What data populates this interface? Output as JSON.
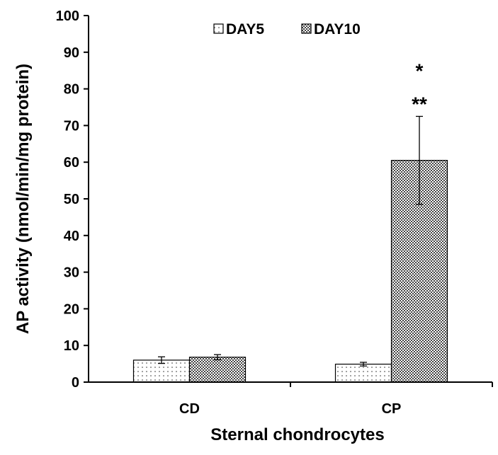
{
  "chart_data": {
    "type": "bar",
    "xlabel": "Sternal chondrocytes",
    "ylabel": "AP activity (nmol/min/mg protein)",
    "ylim": [
      0,
      100
    ],
    "yticks": [
      "0",
      "10",
      "20",
      "30",
      "40",
      "50",
      "60",
      "70",
      "80",
      "90",
      "100"
    ],
    "categories": [
      "CD",
      "CP"
    ],
    "series": [
      {
        "name": "DAY5",
        "pattern": "dots",
        "values": [
          6.0,
          4.9
        ],
        "errors": [
          0.9,
          0.5
        ]
      },
      {
        "name": "DAY10",
        "pattern": "dense-dots",
        "values": [
          6.8,
          60.5
        ],
        "errors": [
          0.7,
          12.0
        ]
      }
    ],
    "annotations": [
      {
        "category": "CP",
        "series": "DAY10",
        "text": "*",
        "y": 85
      },
      {
        "category": "CP",
        "series": "DAY10",
        "text": "**",
        "y": 76
      }
    ],
    "legend_position": "top-center",
    "grid": false
  }
}
